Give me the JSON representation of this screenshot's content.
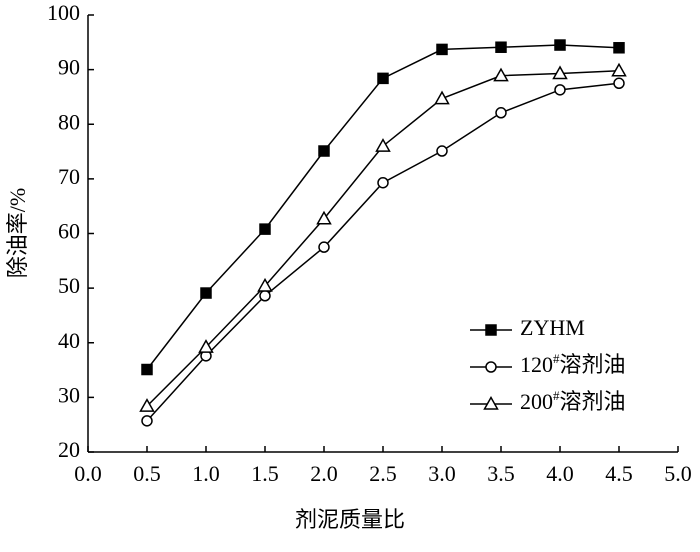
{
  "chart_data": {
    "type": "line",
    "x_label": "剂泥质量比",
    "y_label": "除油率/%",
    "x": [
      0.5,
      1.0,
      1.5,
      2.0,
      2.5,
      3.0,
      3.5,
      4.0,
      4.5
    ],
    "series": [
      {
        "name": "ZYHM",
        "color": "#000000",
        "marker": "filled-square",
        "values": [
          35.1,
          49.1,
          60.8,
          75.1,
          88.4,
          93.7,
          94.1,
          94.5,
          94.0
        ]
      },
      {
        "name": "120#溶剂油",
        "color": "#000000",
        "marker": "open-circle",
        "values": [
          25.7,
          37.6,
          48.6,
          57.5,
          69.3,
          75.1,
          82.1,
          86.3,
          87.5
        ]
      },
      {
        "name": "200#溶剂油",
        "color": "#000000",
        "marker": "open-triangle",
        "values": [
          28.4,
          39.2,
          50.4,
          62.7,
          76.0,
          84.7,
          88.9,
          89.3,
          89.8
        ]
      }
    ],
    "xlim": [
      0,
      5
    ],
    "xticks": [
      {
        "value": 0,
        "label": "0.0"
      },
      {
        "value": 0.5,
        "label": "0.5"
      },
      {
        "value": 1,
        "label": "1.0"
      },
      {
        "value": 1.5,
        "label": "1.5"
      },
      {
        "value": 2,
        "label": "2.0"
      },
      {
        "value": 2.5,
        "label": "2.5"
      },
      {
        "value": 3,
        "label": "3.0"
      },
      {
        "value": 3.5,
        "label": "3.5"
      },
      {
        "value": 4,
        "label": "4.0"
      },
      {
        "value": 4.5,
        "label": "4.5"
      },
      {
        "value": 5,
        "label": "5.0"
      }
    ],
    "ylim": [
      20,
      100
    ],
    "yticks": [
      20,
      30,
      40,
      50,
      60,
      70,
      80,
      90,
      100
    ],
    "grid": false,
    "legend": "lower right"
  }
}
